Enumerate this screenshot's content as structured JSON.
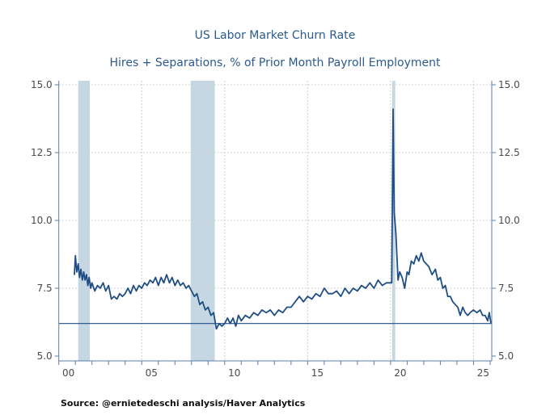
{
  "chart_data": {
    "type": "line",
    "title": "US Labor Market Churn Rate",
    "subtitle": "Hires + Separations, % of Prior Month Payroll Employment",
    "source": "Source:  @ernietedeschi analysis/Haver Analytics",
    "xlabel": "",
    "ylabel": "",
    "xlim": [
      2000,
      2026.1
    ],
    "ylim": [
      5.0,
      15.0
    ],
    "x_ticks": [
      {
        "year": 2000,
        "label": "00"
      },
      {
        "year": 2005,
        "label": "05"
      },
      {
        "year": 2010,
        "label": "10"
      },
      {
        "year": 2015,
        "label": "15"
      },
      {
        "year": 2020,
        "label": "20"
      },
      {
        "year": 2025,
        "label": "25"
      }
    ],
    "y_ticks": [
      "5.0",
      "7.5",
      "10.0",
      "12.5",
      "15.0"
    ],
    "grid": true,
    "recessions": [
      [
        2001.17,
        2001.87
      ],
      [
        2007.95,
        2009.4
      ],
      [
        2020.1,
        2020.28
      ]
    ],
    "reference_line": 6.2,
    "colors": {
      "line": "#1f4e85",
      "recession": "#c5d7e2",
      "axis": "#5b7fa6",
      "title": "#2b5a8c"
    },
    "series": [
      {
        "x": [
          2000.94,
          2001.0,
          2001.08,
          2001.17,
          2001.25,
          2001.33,
          2001.42,
          2001.5,
          2001.58,
          2001.67,
          2001.75,
          2001.83,
          2001.92,
          2002.0,
          2002.17,
          2002.33,
          2002.5,
          2002.67,
          2002.83,
          2003.0,
          2003.17,
          2003.33,
          2003.5,
          2003.67,
          2003.83,
          2004.0,
          2004.17,
          2004.33,
          2004.5,
          2004.67,
          2004.83,
          2005.0,
          2005.17,
          2005.33,
          2005.5,
          2005.67,
          2005.83,
          2006.0,
          2006.17,
          2006.33,
          2006.5,
          2006.67,
          2006.83,
          2007.0,
          2007.17,
          2007.33,
          2007.5,
          2007.67,
          2007.83,
          2008.0,
          2008.17,
          2008.33,
          2008.5,
          2008.67,
          2008.83,
          2009.0,
          2009.17,
          2009.33,
          2009.5,
          2009.67,
          2009.83,
          2010.0,
          2010.17,
          2010.33,
          2010.5,
          2010.67,
          2010.83,
          2011.0,
          2011.25,
          2011.5,
          2011.75,
          2012.0,
          2012.25,
          2012.5,
          2012.75,
          2013.0,
          2013.25,
          2013.5,
          2013.75,
          2014.0,
          2014.25,
          2014.5,
          2014.75,
          2015.0,
          2015.25,
          2015.5,
          2015.75,
          2016.0,
          2016.25,
          2016.5,
          2016.75,
          2017.0,
          2017.25,
          2017.5,
          2017.75,
          2018.0,
          2018.25,
          2018.5,
          2018.75,
          2019.0,
          2019.25,
          2019.5,
          2019.75,
          2019.95,
          2020.07,
          2020.15,
          2020.22,
          2020.32,
          2020.45,
          2020.55,
          2020.7,
          2020.85,
          2021.0,
          2021.1,
          2021.25,
          2021.4,
          2021.55,
          2021.7,
          2021.85,
          2022.0,
          2022.15,
          2022.3,
          2022.5,
          2022.7,
          2022.85,
          2023.0,
          2023.15,
          2023.3,
          2023.45,
          2023.6,
          2023.75,
          2023.9,
          2024.05,
          2024.2,
          2024.35,
          2024.5,
          2024.65,
          2024.8,
          2025.0,
          2025.2,
          2025.4,
          2025.55,
          2025.7,
          2025.85,
          2025.95,
          2026.05
        ],
        "y": [
          8.0,
          8.7,
          8.1,
          8.4,
          7.9,
          8.2,
          7.8,
          8.1,
          7.8,
          8.0,
          7.6,
          7.9,
          7.5,
          7.7,
          7.4,
          7.6,
          7.5,
          7.7,
          7.4,
          7.6,
          7.1,
          7.2,
          7.1,
          7.3,
          7.2,
          7.3,
          7.5,
          7.3,
          7.6,
          7.4,
          7.6,
          7.5,
          7.7,
          7.6,
          7.8,
          7.7,
          7.9,
          7.6,
          7.9,
          7.7,
          8.0,
          7.7,
          7.9,
          7.6,
          7.8,
          7.6,
          7.7,
          7.5,
          7.6,
          7.4,
          7.2,
          7.3,
          6.9,
          7.0,
          6.7,
          6.8,
          6.5,
          6.6,
          6.0,
          6.2,
          6.1,
          6.2,
          6.4,
          6.2,
          6.4,
          6.1,
          6.5,
          6.3,
          6.5,
          6.4,
          6.6,
          6.5,
          6.7,
          6.6,
          6.7,
          6.5,
          6.7,
          6.6,
          6.8,
          6.8,
          7.0,
          7.2,
          7.0,
          7.2,
          7.1,
          7.3,
          7.2,
          7.5,
          7.3,
          7.3,
          7.4,
          7.2,
          7.5,
          7.3,
          7.5,
          7.4,
          7.6,
          7.5,
          7.7,
          7.5,
          7.8,
          7.6,
          7.7,
          7.7,
          7.7,
          14.1,
          10.3,
          9.5,
          7.8,
          8.1,
          7.9,
          7.5,
          8.1,
          8.0,
          8.5,
          8.4,
          8.7,
          8.5,
          8.8,
          8.5,
          8.4,
          8.3,
          8.0,
          8.2,
          7.8,
          7.9,
          7.5,
          7.6,
          7.2,
          7.2,
          7.0,
          6.9,
          6.8,
          6.5,
          6.8,
          6.6,
          6.5,
          6.6,
          6.7,
          6.6,
          6.7,
          6.5,
          6.5,
          6.3,
          6.6,
          6.2
        ]
      }
    ]
  }
}
